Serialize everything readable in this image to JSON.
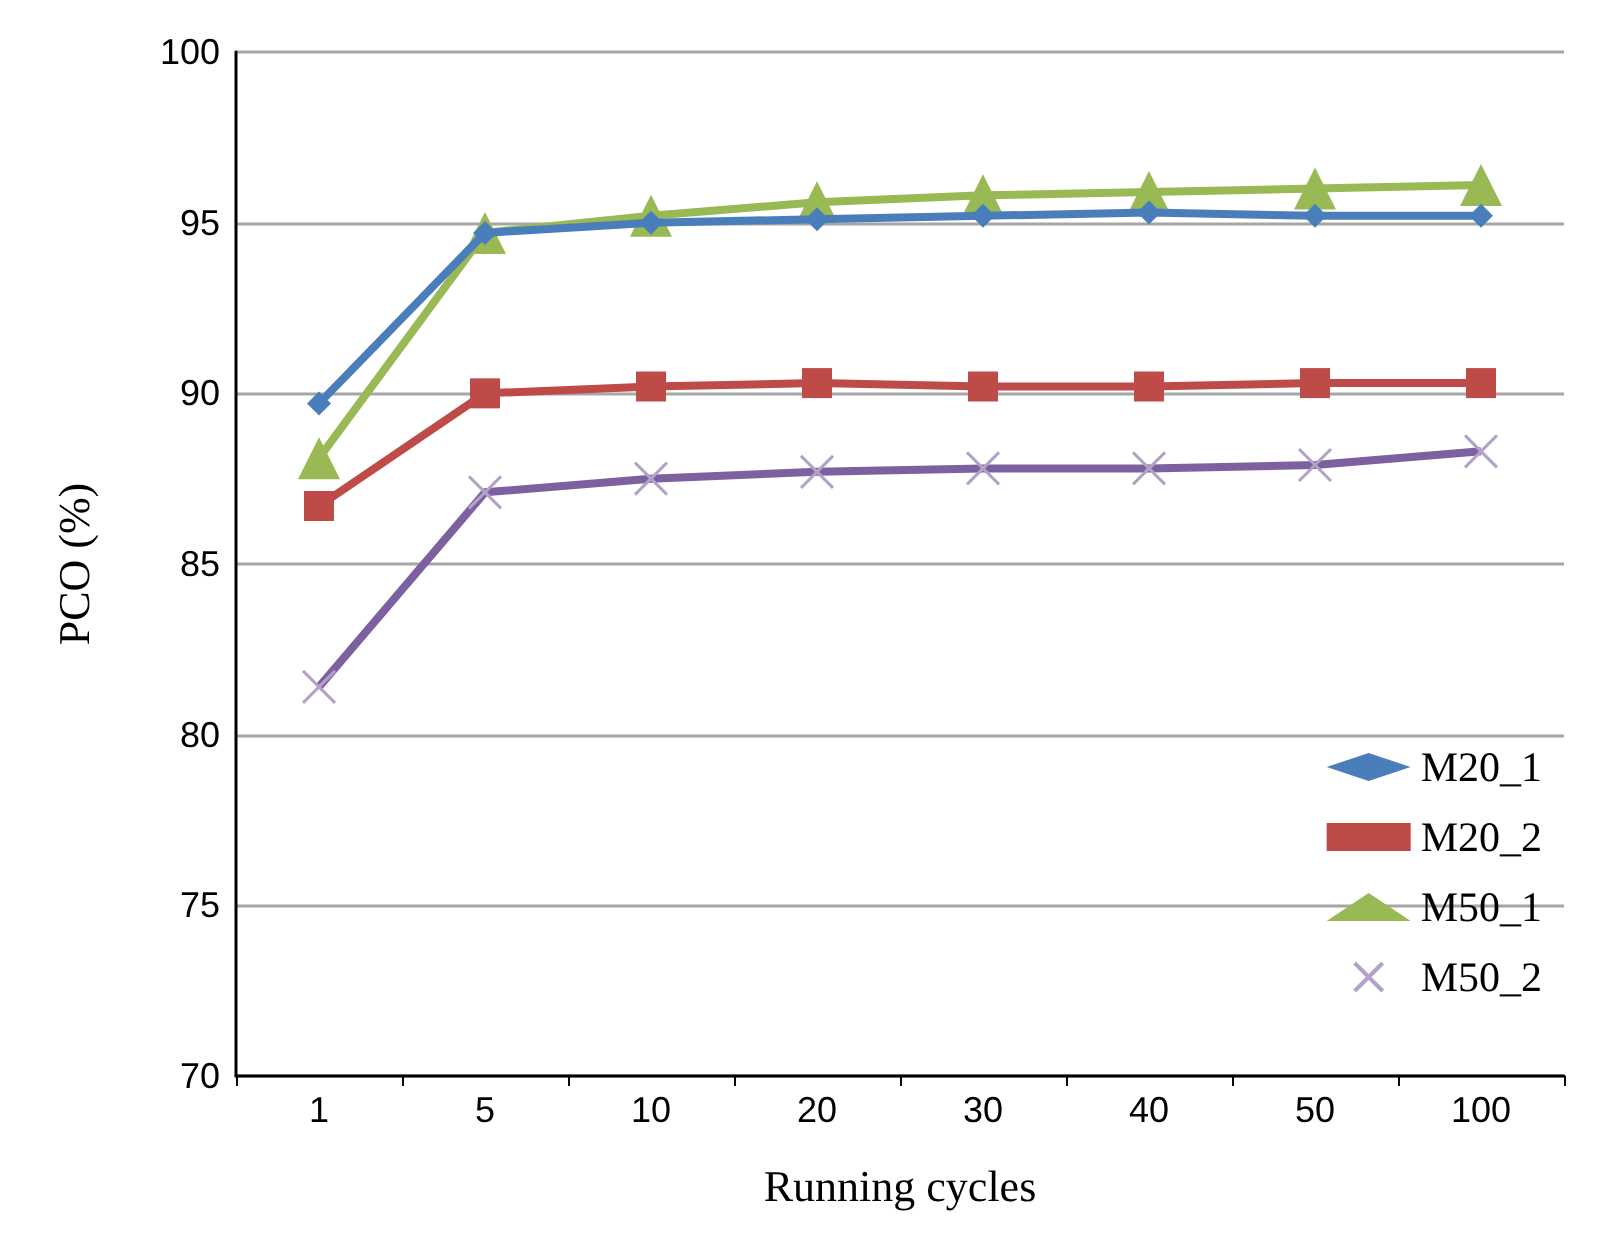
{
  "chart_data": {
    "type": "line",
    "xlabel": "Running cycles",
    "ylabel": "PCO (%)",
    "categories": [
      "1",
      "5",
      "10",
      "20",
      "30",
      "40",
      "50",
      "100"
    ],
    "series": [
      {
        "name": "M20_1",
        "color": "#4a7ebb",
        "marker": "diamond",
        "values": [
          89.7,
          94.7,
          95.0,
          95.1,
          95.2,
          95.3,
          95.2,
          95.2
        ]
      },
      {
        "name": "M20_2",
        "color": "#be4b48",
        "marker": "square",
        "values": [
          86.7,
          90.0,
          90.2,
          90.3,
          90.2,
          90.2,
          90.3,
          90.3
        ]
      },
      {
        "name": "M50_1",
        "color": "#98b954",
        "marker": "triangle",
        "values": [
          88.1,
          94.7,
          95.2,
          95.6,
          95.8,
          95.9,
          96.0,
          96.1
        ]
      },
      {
        "name": "M50_2",
        "color": "#7d60a0",
        "marker": "cross",
        "values": [
          81.4,
          87.1,
          87.5,
          87.7,
          87.8,
          87.8,
          87.9,
          88.3
        ]
      }
    ],
    "ylim": [
      70,
      100
    ],
    "yticks": [
      70,
      75,
      80,
      85,
      90,
      95,
      100
    ],
    "grid": "y",
    "legend": "bottom right"
  }
}
